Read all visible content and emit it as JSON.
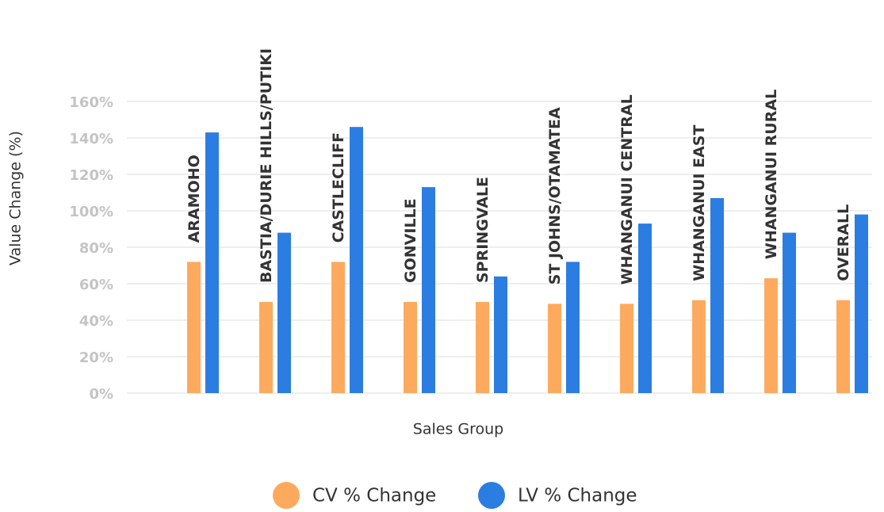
{
  "chart_data": {
    "type": "bar",
    "x_label": "Sales Group",
    "y_label": "Value Change (%)",
    "categories": [
      "ARAMOHO",
      "BASTIA/DURIE HILLS/PUTIKI",
      "CASTLECLIFF",
      "GONVILLE",
      "SPRINGVALE",
      "ST JOHNS/OTAMATEA",
      "WHANGANUI CENTRAL",
      "WHANGANUI EAST",
      "WHANGANUI RURAL",
      "OVERALL"
    ],
    "series": [
      {
        "name": "CV % Change",
        "color": "#fdaa5f",
        "values": [
          72,
          50,
          72,
          50,
          50,
          49,
          49,
          51,
          63,
          51
        ]
      },
      {
        "name": "LV % Change",
        "color": "#2b7de1",
        "values": [
          143,
          88,
          146,
          113,
          64,
          72,
          93,
          107,
          88,
          98
        ]
      }
    ],
    "ylim": [
      0,
      160
    ],
    "yticks": [
      {
        "value": 0,
        "label": "0%"
      },
      {
        "value": 20,
        "label": "20%"
      },
      {
        "value": 40,
        "label": "40%"
      },
      {
        "value": 60,
        "label": "60%"
      },
      {
        "value": 80,
        "label": "80%"
      },
      {
        "value": 100,
        "label": "100%"
      },
      {
        "value": 120,
        "label": "120%"
      },
      {
        "value": 140,
        "label": "140%"
      },
      {
        "value": 160,
        "label": "160%"
      }
    ],
    "grid": true,
    "legend": "bottom"
  }
}
